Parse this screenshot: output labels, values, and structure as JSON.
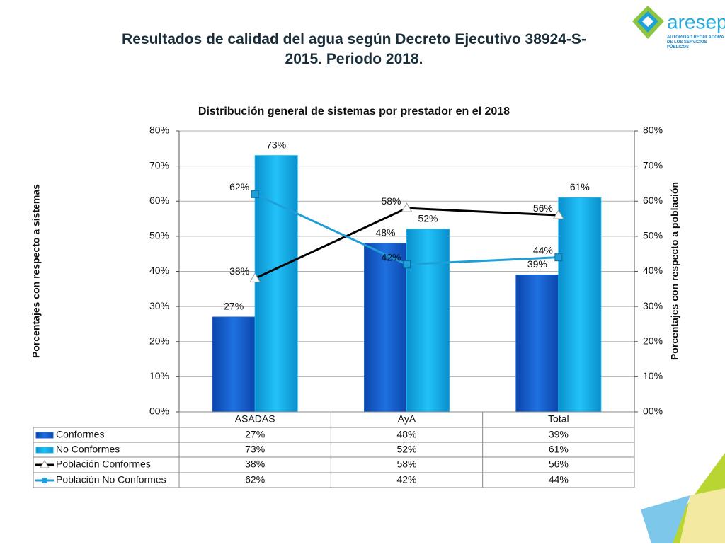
{
  "slide_title": "Resultados de calidad del agua según Decreto Ejecutivo 38924-S-2015. Periodo 2018.",
  "logo": {
    "name": "aresep",
    "tagline": "AUTORIDAD REGULADORA DE LOS SERVICIOS PÚBLICOS"
  },
  "chart_data": {
    "type": "bar",
    "title": "Distribución general de sistemas por prestador en el 2018",
    "y_label": "Porcentajes con respecto a sistemas",
    "y2_label": "Porcentajes con respecto a población",
    "categories": [
      "ASADAS",
      "AyA",
      "Total"
    ],
    "series": [
      {
        "name": "Conformes",
        "type": "bar",
        "color": "#1a64d2",
        "values": [
          27,
          48,
          39
        ],
        "value_labels": [
          "27%",
          "48%",
          "39%"
        ]
      },
      {
        "name": "No Conformes",
        "type": "bar",
        "color": "#14b4ee",
        "values": [
          73,
          52,
          61
        ],
        "value_labels": [
          "73%",
          "52%",
          "61%"
        ]
      },
      {
        "name": "Población Conformes",
        "type": "line",
        "axis": "y2",
        "marker": "triangle",
        "color": "#000000",
        "values": [
          38,
          58,
          56
        ],
        "value_labels": [
          "38%",
          "58%",
          "56%"
        ]
      },
      {
        "name": "Población No Conformes",
        "type": "line",
        "axis": "y2",
        "marker": "square",
        "color": "#1f9fd8",
        "values": [
          62,
          42,
          44
        ],
        "value_labels": [
          "62%",
          "42%",
          "44%"
        ]
      }
    ],
    "ylim": [
      0,
      80
    ],
    "yticks": [
      {
        "value": 0,
        "label": "00%"
      },
      {
        "value": 10,
        "label": "10%"
      },
      {
        "value": 20,
        "label": "20%"
      },
      {
        "value": 30,
        "label": "30%"
      },
      {
        "value": 40,
        "label": "40%"
      },
      {
        "value": 50,
        "label": "50%"
      },
      {
        "value": 60,
        "label": "60%"
      },
      {
        "value": 70,
        "label": "70%"
      },
      {
        "value": 80,
        "label": "80%"
      }
    ],
    "y2lim": [
      0,
      80
    ],
    "y2ticks": [
      {
        "value": 0,
        "label": "00%"
      },
      {
        "value": 10,
        "label": "10%"
      },
      {
        "value": 20,
        "label": "20%"
      },
      {
        "value": 30,
        "label": "30%"
      },
      {
        "value": 40,
        "label": "40%"
      },
      {
        "value": 50,
        "label": "50%"
      },
      {
        "value": 60,
        "label": "60%"
      },
      {
        "value": 70,
        "label": "70%"
      },
      {
        "value": 80,
        "label": "80%"
      }
    ],
    "grid": true,
    "data_table": true
  }
}
